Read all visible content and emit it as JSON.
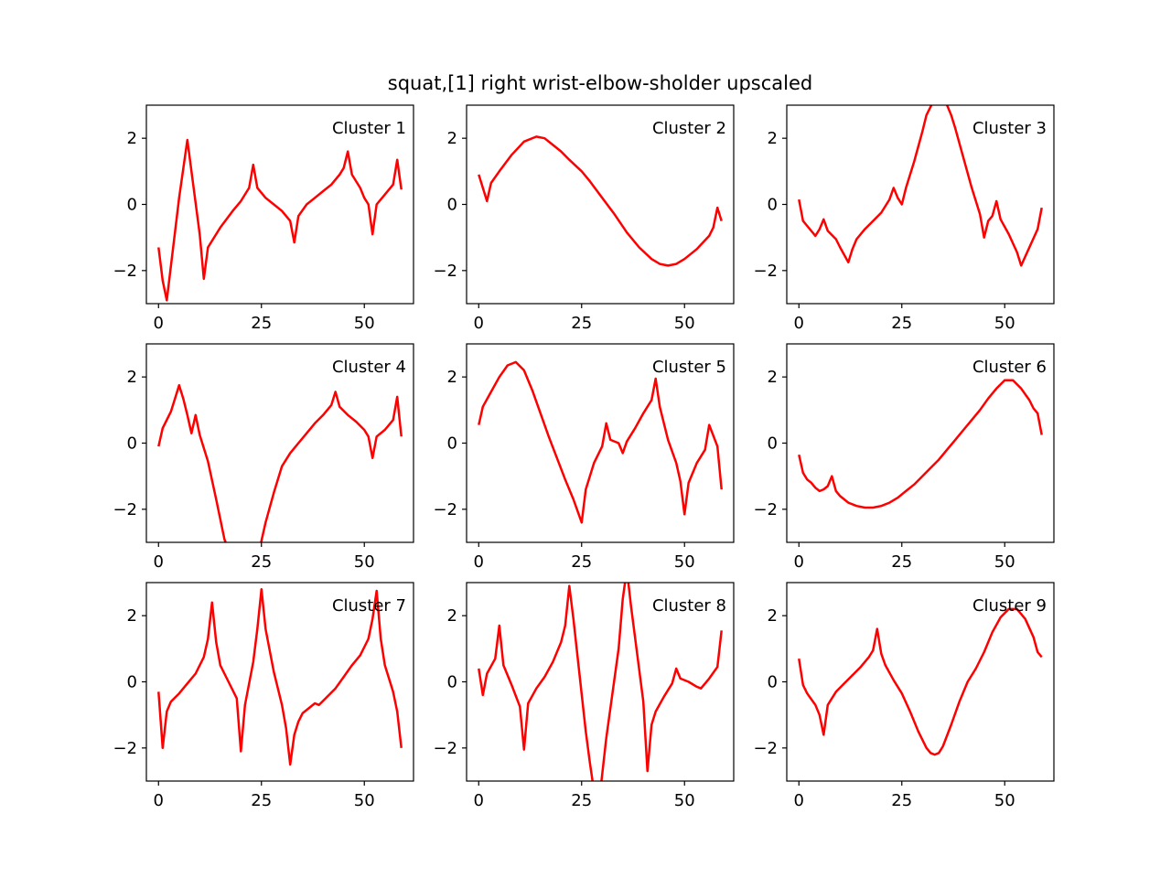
{
  "figure": {
    "title": "squat,[1] right wrist-elbow-sholder upscaled"
  },
  "chart_data": [
    {
      "type": "line",
      "label": "Cluster 1",
      "xlim": [
        -2.95,
        61.95
      ],
      "ylim": [
        -3,
        3
      ],
      "xticks": [
        0,
        25,
        50
      ],
      "yticks": [
        -2,
        0,
        2
      ],
      "line_color": "#ff0000",
      "x": [
        0,
        1,
        2,
        5,
        7,
        10,
        11,
        12,
        15,
        18,
        20,
        22,
        23,
        24,
        26,
        28,
        30,
        32,
        33,
        34,
        36,
        38,
        40,
        42,
        44,
        45,
        46,
        47,
        49,
        50,
        51,
        52,
        53,
        55,
        57,
        58,
        59
      ],
      "y": [
        -1.3,
        -2.3,
        -2.9,
        0.2,
        1.95,
        -0.9,
        -2.25,
        -1.3,
        -0.7,
        -0.2,
        0.1,
        0.5,
        1.2,
        0.5,
        0.2,
        0.0,
        -0.2,
        -0.5,
        -1.15,
        -0.35,
        0.0,
        0.2,
        0.4,
        0.6,
        0.9,
        1.1,
        1.6,
        0.9,
        0.5,
        0.2,
        0.0,
        -0.9,
        0.0,
        0.3,
        0.6,
        1.35,
        0.45
      ]
    },
    {
      "type": "line",
      "label": "Cluster 2",
      "xlim": [
        -2.95,
        61.95
      ],
      "ylim": [
        -3,
        3
      ],
      "xticks": [
        0,
        25,
        50
      ],
      "yticks": [
        -2,
        0,
        2
      ],
      "line_color": "#ff0000",
      "x": [
        0,
        1,
        2,
        3,
        5,
        8,
        11,
        14,
        16,
        18,
        20,
        22,
        25,
        27,
        30,
        33,
        36,
        39,
        42,
        44,
        46,
        48,
        50,
        53,
        56,
        57,
        58,
        59
      ],
      "y": [
        0.9,
        0.5,
        0.1,
        0.65,
        1.0,
        1.5,
        1.9,
        2.05,
        2.0,
        1.8,
        1.6,
        1.35,
        1.0,
        0.7,
        0.2,
        -0.3,
        -0.85,
        -1.3,
        -1.65,
        -1.8,
        -1.85,
        -1.8,
        -1.65,
        -1.35,
        -0.95,
        -0.7,
        -0.1,
        -0.5
      ]
    },
    {
      "type": "line",
      "label": "Cluster 3",
      "xlim": [
        -2.95,
        61.95
      ],
      "ylim": [
        -3,
        3
      ],
      "xticks": [
        0,
        25,
        50
      ],
      "yticks": [
        -2,
        0,
        2
      ],
      "line_color": "#ff0000",
      "x": [
        0,
        1,
        2,
        4,
        5,
        6,
        7,
        9,
        10,
        12,
        13,
        14,
        16,
        18,
        20,
        22,
        23,
        24,
        25,
        26,
        28,
        30,
        31,
        32,
        33,
        34,
        35,
        36,
        37,
        38,
        40,
        42,
        44,
        45,
        46,
        47,
        48,
        49,
        51,
        53,
        54,
        56,
        58,
        59
      ],
      "y": [
        0.15,
        -0.5,
        -0.65,
        -0.95,
        -0.75,
        -0.45,
        -0.8,
        -1.05,
        -1.3,
        -1.75,
        -1.35,
        -1.05,
        -0.75,
        -0.5,
        -0.25,
        0.15,
        0.5,
        0.2,
        0.0,
        0.5,
        1.3,
        2.2,
        2.7,
        2.95,
        3.2,
        3.2,
        3.1,
        3.0,
        2.7,
        2.3,
        1.4,
        0.5,
        -0.3,
        -1.0,
        -0.5,
        -0.35,
        0.1,
        -0.45,
        -0.9,
        -1.45,
        -1.85,
        -1.3,
        -0.75,
        -0.1
      ]
    },
    {
      "type": "line",
      "label": "Cluster 4",
      "xlim": [
        -2.95,
        61.95
      ],
      "ylim": [
        -3,
        3
      ],
      "xticks": [
        0,
        25,
        50
      ],
      "yticks": [
        -2,
        0,
        2
      ],
      "line_color": "#ff0000",
      "x": [
        0,
        1,
        3,
        4,
        5,
        6,
        7,
        8,
        9,
        10,
        12,
        14,
        16,
        18,
        20,
        22,
        24,
        26,
        28,
        30,
        32,
        34,
        36,
        38,
        40,
        42,
        43,
        44,
        46,
        48,
        50,
        51,
        52,
        53,
        55,
        57,
        58,
        59
      ],
      "y": [
        -0.1,
        0.45,
        0.95,
        1.35,
        1.75,
        1.35,
        0.85,
        0.3,
        0.85,
        0.25,
        -0.55,
        -1.7,
        -2.9,
        -3.6,
        -4.0,
        -4.0,
        -3.5,
        -2.4,
        -1.5,
        -0.7,
        -0.3,
        0.0,
        0.3,
        0.6,
        0.85,
        1.15,
        1.55,
        1.1,
        0.85,
        0.65,
        0.4,
        0.2,
        -0.45,
        0.2,
        0.4,
        0.7,
        1.4,
        0.2
      ]
    },
    {
      "type": "line",
      "label": "Cluster 5",
      "xlim": [
        -2.95,
        61.95
      ],
      "ylim": [
        -3,
        3
      ],
      "xticks": [
        0,
        25,
        50
      ],
      "yticks": [
        -2,
        0,
        2
      ],
      "line_color": "#ff0000",
      "x": [
        0,
        1,
        3,
        5,
        7,
        9,
        11,
        13,
        15,
        17,
        19,
        21,
        23,
        25,
        26,
        28,
        30,
        31,
        32,
        34,
        35,
        36,
        38,
        40,
        42,
        43,
        44,
        46,
        48,
        49,
        50,
        51,
        53,
        55,
        56,
        58,
        59
      ],
      "y": [
        0.55,
        1.1,
        1.55,
        2.0,
        2.35,
        2.45,
        2.2,
        1.6,
        0.9,
        0.2,
        -0.45,
        -1.1,
        -1.7,
        -2.4,
        -1.4,
        -0.6,
        -0.1,
        0.6,
        0.1,
        0.0,
        -0.3,
        0.05,
        0.45,
        0.9,
        1.3,
        1.95,
        1.1,
        0.1,
        -0.6,
        -1.15,
        -2.15,
        -1.2,
        -0.6,
        -0.2,
        0.55,
        -0.1,
        -1.4
      ]
    },
    {
      "type": "line",
      "label": "Cluster 6",
      "xlim": [
        -2.95,
        61.95
      ],
      "ylim": [
        -3,
        3
      ],
      "xticks": [
        0,
        25,
        50
      ],
      "yticks": [
        -2,
        0,
        2
      ],
      "line_color": "#ff0000",
      "x": [
        0,
        1,
        2,
        3,
        4,
        5,
        6,
        7,
        8,
        9,
        10,
        12,
        14,
        16,
        18,
        20,
        22,
        24,
        26,
        28,
        30,
        32,
        34,
        36,
        38,
        40,
        42,
        44,
        46,
        48,
        50,
        52,
        54,
        56,
        57,
        58,
        59
      ],
      "y": [
        -0.35,
        -0.9,
        -1.1,
        -1.2,
        -1.35,
        -1.45,
        -1.4,
        -1.3,
        -1.0,
        -1.45,
        -1.6,
        -1.8,
        -1.9,
        -1.95,
        -1.95,
        -1.9,
        -1.8,
        -1.65,
        -1.45,
        -1.25,
        -1.0,
        -0.75,
        -0.5,
        -0.2,
        0.1,
        0.4,
        0.7,
        1.0,
        1.35,
        1.65,
        1.9,
        1.9,
        1.65,
        1.3,
        1.05,
        0.9,
        0.25
      ]
    },
    {
      "type": "line",
      "label": "Cluster 7",
      "xlim": [
        -2.95,
        61.95
      ],
      "ylim": [
        -3,
        3
      ],
      "xticks": [
        0,
        25,
        50
      ],
      "yticks": [
        -2,
        0,
        2
      ],
      "line_color": "#ff0000",
      "x": [
        0,
        1,
        2,
        3,
        5,
        7,
        9,
        11,
        12,
        13,
        14,
        15,
        17,
        19,
        20,
        21,
        23,
        24,
        25,
        26,
        28,
        30,
        31,
        32,
        33,
        34,
        35,
        37,
        38,
        39,
        41,
        43,
        45,
        47,
        49,
        51,
        52,
        53,
        54,
        55,
        57,
        58,
        59
      ],
      "y": [
        -0.3,
        -2.0,
        -0.9,
        -0.6,
        -0.35,
        -0.05,
        0.25,
        0.75,
        1.3,
        2.4,
        1.2,
        0.5,
        0.0,
        -0.5,
        -2.1,
        -0.7,
        0.6,
        1.6,
        2.8,
        1.6,
        0.3,
        -0.7,
        -1.4,
        -2.5,
        -1.6,
        -1.2,
        -0.95,
        -0.75,
        -0.65,
        -0.7,
        -0.45,
        -0.2,
        0.15,
        0.5,
        0.8,
        1.3,
        1.9,
        2.75,
        1.3,
        0.5,
        -0.3,
        -0.9,
        -2.0
      ]
    },
    {
      "type": "line",
      "label": "Cluster 8",
      "xlim": [
        -2.95,
        61.95
      ],
      "ylim": [
        -3,
        3
      ],
      "xticks": [
        0,
        25,
        50
      ],
      "yticks": [
        -2,
        0,
        2
      ],
      "line_color": "#ff0000",
      "x": [
        0,
        1,
        2,
        4,
        5,
        6,
        8,
        10,
        11,
        12,
        14,
        16,
        18,
        20,
        21,
        22,
        23,
        26,
        27,
        28,
        29,
        31,
        34,
        35,
        36,
        37,
        40,
        41,
        42,
        43,
        45,
        47,
        48,
        49,
        51,
        53,
        54,
        56,
        58,
        59
      ],
      "y": [
        0.4,
        -0.4,
        0.25,
        0.7,
        1.7,
        0.5,
        -0.1,
        -0.75,
        -2.05,
        -0.65,
        -0.2,
        0.15,
        0.6,
        1.2,
        1.7,
        2.9,
        1.9,
        -1.5,
        -2.45,
        -3.3,
        -3.9,
        -1.7,
        1.0,
        2.5,
        3.4,
        2.3,
        -0.6,
        -2.7,
        -1.3,
        -0.9,
        -0.45,
        -0.05,
        0.4,
        0.1,
        0.0,
        -0.15,
        -0.2,
        0.1,
        0.45,
        1.55
      ]
    },
    {
      "type": "line",
      "label": "Cluster 9",
      "xlim": [
        -2.95,
        61.95
      ],
      "ylim": [
        -3,
        3
      ],
      "xticks": [
        0,
        25,
        50
      ],
      "yticks": [
        -2,
        0,
        2
      ],
      "line_color": "#ff0000",
      "x": [
        0,
        1,
        2,
        4,
        5,
        6,
        7,
        9,
        11,
        13,
        15,
        17,
        18,
        19,
        20,
        21,
        23,
        25,
        27,
        29,
        31,
        32,
        33,
        34,
        35,
        37,
        39,
        41,
        43,
        45,
        47,
        49,
        51,
        53,
        55,
        57,
        58,
        59
      ],
      "y": [
        0.7,
        -0.1,
        -0.35,
        -0.7,
        -1.0,
        -1.6,
        -0.7,
        -0.3,
        -0.05,
        0.2,
        0.45,
        0.75,
        0.95,
        1.6,
        0.85,
        0.5,
        0.05,
        -0.35,
        -0.9,
        -1.5,
        -2.0,
        -2.15,
        -2.2,
        -2.15,
        -1.95,
        -1.3,
        -0.6,
        0.0,
        0.4,
        0.9,
        1.5,
        1.95,
        2.2,
        2.2,
        1.9,
        1.35,
        0.9,
        0.75
      ]
    }
  ]
}
